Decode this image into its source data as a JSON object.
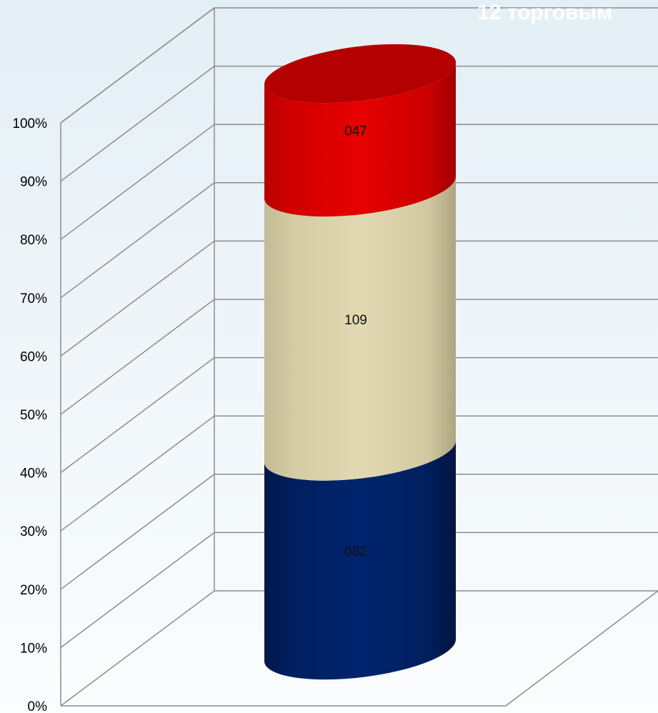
{
  "chart_data": {
    "type": "bar",
    "subtype": "100%-stacked-3d-cylinder",
    "title": "12 торговым",
    "categories": [
      ""
    ],
    "series": [
      {
        "value_label": "082",
        "values": [
          34.5
        ],
        "color": "#00226a"
      },
      {
        "value_label": "109",
        "values": [
          45.8
        ],
        "color": "#ddd4ad"
      },
      {
        "value_label": "047",
        "values": [
          19.7
        ],
        "color": "#e40000"
      }
    ],
    "ylim": [
      0,
      100
    ],
    "y_ticks": [
      "0%",
      "10%",
      "20%",
      "30%",
      "40%",
      "50%",
      "60%",
      "70%",
      "80%",
      "90%",
      "100%"
    ],
    "grid": true,
    "xlabel": "",
    "ylabel": ""
  }
}
